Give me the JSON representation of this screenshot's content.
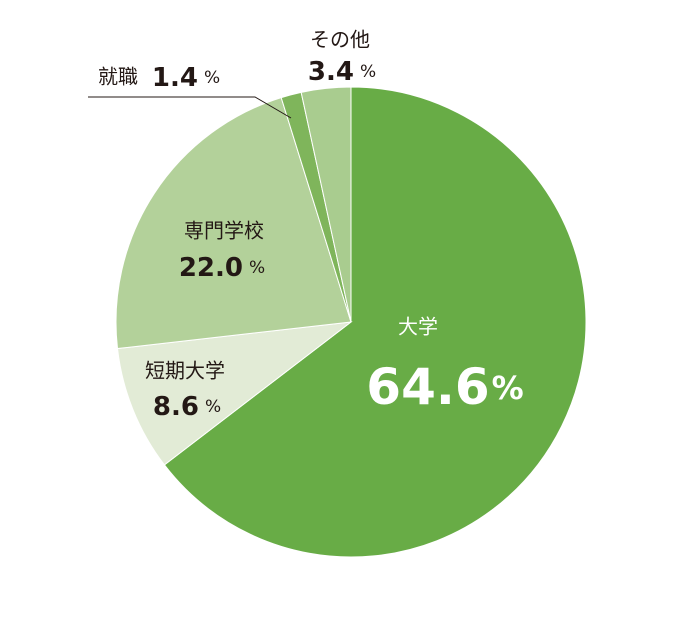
{
  "chart_data": {
    "type": "pie",
    "categories": [
      "大学",
      "短期大学",
      "専門学校",
      "就職",
      "その他"
    ],
    "values": [
      64.6,
      8.6,
      22.0,
      1.4,
      3.4
    ],
    "value_labels": [
      "64.6",
      "8.6",
      "22.0",
      "1.4",
      "3.4"
    ],
    "unit": "%",
    "colors": [
      "#68ac46",
      "#e2ebd6",
      "#b3d19a",
      "#7fb55b",
      "#a9cc8f"
    ]
  }
}
